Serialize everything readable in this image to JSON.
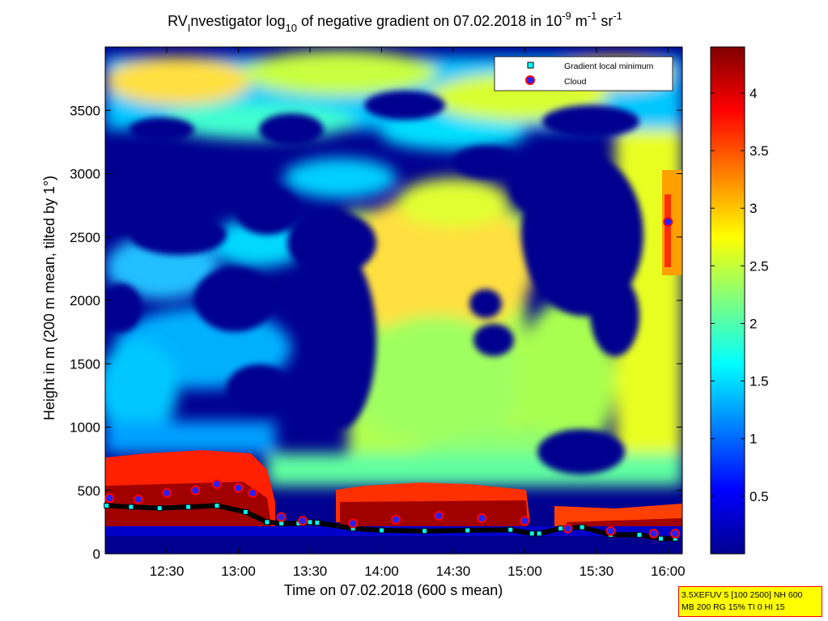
{
  "chart_data": {
    "type": "heatmap",
    "title": {
      "prefix": "RV",
      "prefix_sub": "I",
      "mid1": "nvestigator log",
      "mid1_sub": "10",
      "mid2": " of negative gradient on 07.02.2018 in 10",
      "mid2_sup": "-9",
      "mid3": " m",
      "mid3_sup": "-1",
      "mid4": " sr",
      "mid4_sup": "-1"
    },
    "xlabel": "Time on 07.02.2018 (600 s mean)",
    "ylabel": "Height in m (200 m mean, tilted by 1°)",
    "xlim_hours": [
      12.07,
      16.1
    ],
    "ylim": [
      0,
      4000
    ],
    "x_ticks": [
      {
        "value": 12.5,
        "label": "12:30"
      },
      {
        "value": 13.0,
        "label": "13:00"
      },
      {
        "value": 13.5,
        "label": "13:30"
      },
      {
        "value": 14.0,
        "label": "14:00"
      },
      {
        "value": 14.5,
        "label": "14:30"
      },
      {
        "value": 15.0,
        "label": "15:00"
      },
      {
        "value": 15.5,
        "label": "15:30"
      },
      {
        "value": 16.0,
        "label": "16:00"
      }
    ],
    "y_ticks": [
      0,
      500,
      1000,
      1500,
      2000,
      2500,
      3000,
      3500
    ],
    "colorbar": {
      "range": [
        0,
        4.4
      ],
      "ticks": [
        "0.5",
        "1",
        "1.5",
        "2",
        "2.5",
        "3",
        "3.5",
        "4"
      ],
      "tick_values": [
        0.5,
        1,
        1.5,
        2,
        2.5,
        3,
        3.5,
        4
      ],
      "colormap": "jet"
    },
    "legend": {
      "position": "top-right",
      "entries": [
        {
          "label": "Gradient local minimum",
          "marker": "square",
          "color": "#00ffff"
        },
        {
          "label": "Cloud",
          "marker": "circle",
          "color": "#ff0000"
        }
      ]
    },
    "series": [
      {
        "name": "Gradient local minimum",
        "x": [
          12.08,
          12.25,
          12.45,
          12.65,
          12.85,
          13.05,
          13.2,
          13.3,
          13.42,
          13.5,
          13.55,
          13.8,
          14.0,
          14.3,
          14.6,
          14.9,
          15.05,
          15.1,
          15.25,
          15.4,
          15.6,
          15.8,
          15.95,
          16.05
        ],
        "y": [
          380,
          370,
          360,
          370,
          380,
          330,
          250,
          240,
          240,
          250,
          245,
          200,
          185,
          180,
          185,
          190,
          160,
          160,
          200,
          210,
          150,
          150,
          120,
          120
        ]
      },
      {
        "name": "Cloud",
        "x": [
          12.1,
          12.3,
          12.5,
          12.7,
          12.85,
          13.0,
          13.1,
          13.3,
          13.45,
          13.8,
          14.1,
          14.4,
          14.7,
          15.0,
          15.3,
          15.6,
          15.9,
          16.05,
          16.0
        ],
        "y": [
          440,
          430,
          480,
          500,
          550,
          520,
          480,
          290,
          260,
          240,
          270,
          300,
          280,
          260,
          200,
          180,
          160,
          160,
          2620
        ]
      }
    ]
  },
  "info_box": {
    "line1": "3.5XEFUV 5 [100 2500] NH 600",
    "line2": "MB 200 RG 15% TI 0 HI 15"
  },
  "colors": {
    "low": "#00008f",
    "high": "#800000",
    "min_marker": "#00ffff",
    "cloud_marker": "#ff0000",
    "cloud_fill": "#2222ff"
  }
}
